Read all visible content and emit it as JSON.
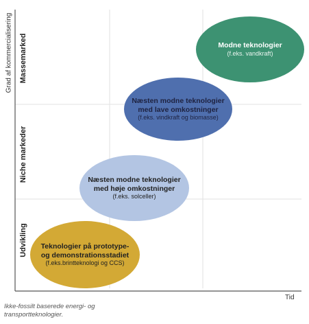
{
  "axes": {
    "y_title": "Grad af kommercialisering",
    "x_title": "Tid"
  },
  "bands": [
    {
      "label": "Massemarked"
    },
    {
      "label": "Niche markeder"
    },
    {
      "label": "Udvikling"
    }
  ],
  "stages": [
    {
      "title_line1": "Modne teknologier",
      "title_line2": "",
      "subtitle": "(f.eks. vandkraft)",
      "color": "#3d9272"
    },
    {
      "title_line1": "Næsten modne teknologier",
      "title_line2": "med lave omkostninger",
      "subtitle": "(f.eks. vindkraft og biomasse)",
      "color": "#4f6fae"
    },
    {
      "title_line1": "Næsten modne teknologier",
      "title_line2": "med høje omkostninger",
      "subtitle": "(f.eks. solceller)",
      "color": "#b3c5e3"
    },
    {
      "title_line1": "Teknologier på prototype-",
      "title_line2": "og demonstrationsstadiet",
      "subtitle": "(f.eks.brintteknologi og CCS)",
      "color": "#d3a935"
    }
  ],
  "caption": {
    "line1": "Ikke-fossilt baserede energi- og",
    "line2": "transportteknologier."
  }
}
